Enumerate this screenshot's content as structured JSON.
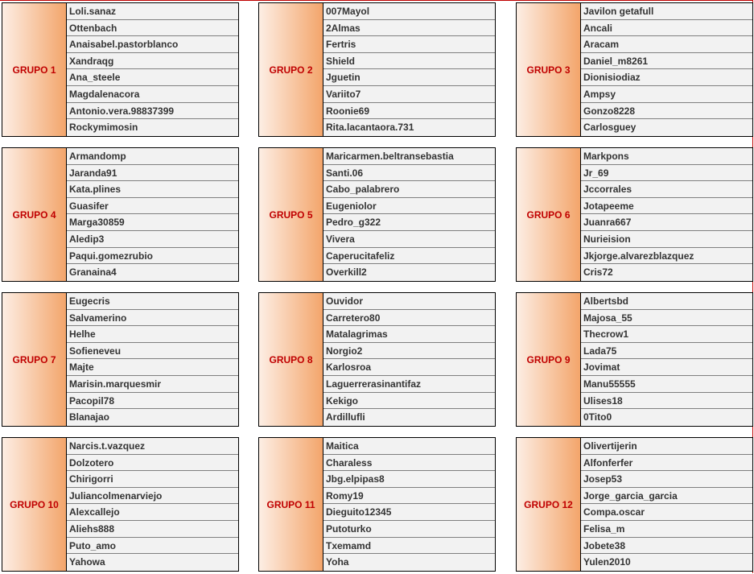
{
  "groups": [
    {
      "label": "GRUPO 1",
      "members": [
        "Loli.sanaz",
        "Ottenbach",
        "Anaisabel.pastorblanco",
        "Xandraqg",
        "Ana_steele",
        "Magdalenacora",
        "Antonio.vera.98837399",
        "Rockymimosin"
      ]
    },
    {
      "label": "GRUPO 2",
      "members": [
        "007Mayol",
        "2Almas",
        "Fertris",
        "Shield",
        "Jguetin",
        "Variito7",
        "Roonie69",
        "Rita.lacantaora.731"
      ]
    },
    {
      "label": "GRUPO 3",
      "members": [
        "Javilon getafull",
        "Ancali",
        "Aracam",
        "Daniel_m8261",
        "Dionisiodiaz",
        "Ampsy",
        "Gonzo8228",
        "Carlosguey"
      ]
    },
    {
      "label": "GRUPO 4",
      "members": [
        "Armandomp",
        "Jaranda91",
        "Kata.plines",
        "Guasifer",
        "Marga30859",
        "Aledip3",
        "Paqui.gomezrubio",
        "Granaina4"
      ]
    },
    {
      "label": "GRUPO 5",
      "members": [
        "Maricarmen.beltransebastia",
        "Santi.06",
        "Cabo_palabrero",
        "Eugeniolor",
        "Pedro_g322",
        "Vivera",
        "Caperucitafeliz",
        "Overkill2"
      ]
    },
    {
      "label": "GRUPO 6",
      "members": [
        "Markpons",
        "Jr_69",
        "Jccorrales",
        "Jotapeeme",
        "Juanra667",
        "Nurieision",
        "Jkjorge.alvarezblazquez",
        "Cris72"
      ]
    },
    {
      "label": "GRUPO 7",
      "members": [
        "Eugecris",
        "Salvamerino",
        "Helhe",
        "Sofieneveu",
        "Majte",
        "Marisin.marquesmir",
        "Pacopil78",
        "Blanajao"
      ]
    },
    {
      "label": "GRUPO 8",
      "members": [
        "Ouvidor",
        "Carretero80",
        "Matalagrimas",
        "Norgio2",
        "Karlosroa",
        "Laguerrerasinantifaz",
        "Kekigo",
        "Ardillufli"
      ]
    },
    {
      "label": "GRUPO 9",
      "members": [
        "Albertsbd",
        "Majosa_55",
        "Thecrow1",
        "Lada75",
        "Jovimat",
        "Manu55555",
        "Ulises18",
        "0Tito0"
      ]
    },
    {
      "label": "GRUPO 10",
      "members": [
        "Narcis.t.vazquez",
        "Dolzotero",
        "Chirigorri",
        "Juliancolmenarviejo",
        "Alexcallejo",
        "Aliehs888",
        "Puto_amo",
        "Yahowa"
      ]
    },
    {
      "label": "GRUPO 11",
      "members": [
        "Maitica",
        "Charaless",
        "Jbg.elpipas8",
        "Romy19",
        "Dieguito12345",
        "Putoturko",
        "Txemamd",
        "Yoha"
      ]
    },
    {
      "label": "GRUPO 12",
      "members": [
        "Olivertijerin",
        "Alfonferfer",
        "Josep53",
        "Jorge_garcia_garcia",
        "Compa.oscar",
        "Felisa_m",
        "Jobete38",
        "Yulen2010"
      ]
    }
  ]
}
